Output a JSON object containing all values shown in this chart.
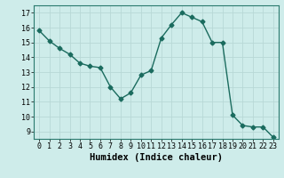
{
  "x": [
    0,
    1,
    2,
    3,
    4,
    5,
    6,
    7,
    8,
    9,
    10,
    11,
    12,
    13,
    14,
    15,
    16,
    17,
    18,
    19,
    20,
    21,
    22,
    23
  ],
  "y": [
    15.8,
    15.1,
    14.6,
    14.2,
    13.6,
    13.4,
    13.3,
    12.0,
    11.2,
    11.6,
    12.8,
    13.1,
    15.3,
    16.2,
    17.0,
    16.7,
    16.4,
    15.0,
    15.0,
    10.1,
    9.4,
    9.3,
    9.3,
    8.6
  ],
  "title": "",
  "xlabel": "Humidex (Indice chaleur)",
  "ylabel": "",
  "xlim": [
    -0.5,
    23.5
  ],
  "ylim": [
    8.5,
    17.5
  ],
  "yticks": [
    9,
    10,
    11,
    12,
    13,
    14,
    15,
    16,
    17
  ],
  "xticks": [
    0,
    1,
    2,
    3,
    4,
    5,
    6,
    7,
    8,
    9,
    10,
    11,
    12,
    13,
    14,
    15,
    16,
    17,
    18,
    19,
    20,
    21,
    22,
    23
  ],
  "line_color": "#1a6b5e",
  "marker": "D",
  "marker_size": 2.5,
  "bg_color": "#ceecea",
  "grid_color": "#b8d8d6",
  "tick_label_fontsize": 6.0,
  "xlabel_fontsize": 7.5,
  "line_width": 1.0
}
